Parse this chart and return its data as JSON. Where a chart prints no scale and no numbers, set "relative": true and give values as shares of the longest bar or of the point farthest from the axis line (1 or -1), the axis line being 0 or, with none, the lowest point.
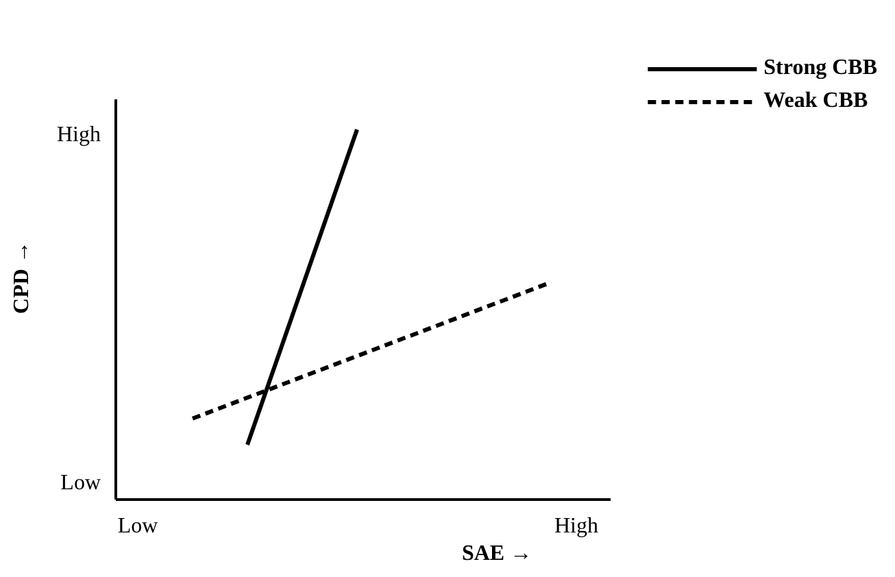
{
  "chart_data": {
    "type": "line",
    "relative": true,
    "xlabel": "SAE →",
    "ylabel": "CPD →",
    "categories": [
      "Low",
      null,
      null,
      null,
      null,
      null,
      null,
      null,
      null,
      null,
      null,
      null,
      null,
      null,
      null,
      null,
      "High"
    ],
    "annotations": [
      "Low",
      "High"
    ],
    "series": [
      {
        "name": "Strong CBB",
        "color": "#000000",
        "values": [
          null,
          null,
          null,
          null,
          0.148,
          null,
          null,
          null,
          1.0,
          null,
          null,
          null,
          null,
          null,
          null,
          null,
          null
        ],
        "line_style": "solid"
      },
      {
        "name": "Weak CBB",
        "color": "#000000",
        "values": [
          null,
          null,
          0.219,
          null,
          null,
          null,
          null,
          null,
          null,
          null,
          null,
          null,
          null,
          null,
          null,
          0.585,
          null
        ],
        "line_style": "dashed"
      }
    ],
    "legend": "top right"
  }
}
